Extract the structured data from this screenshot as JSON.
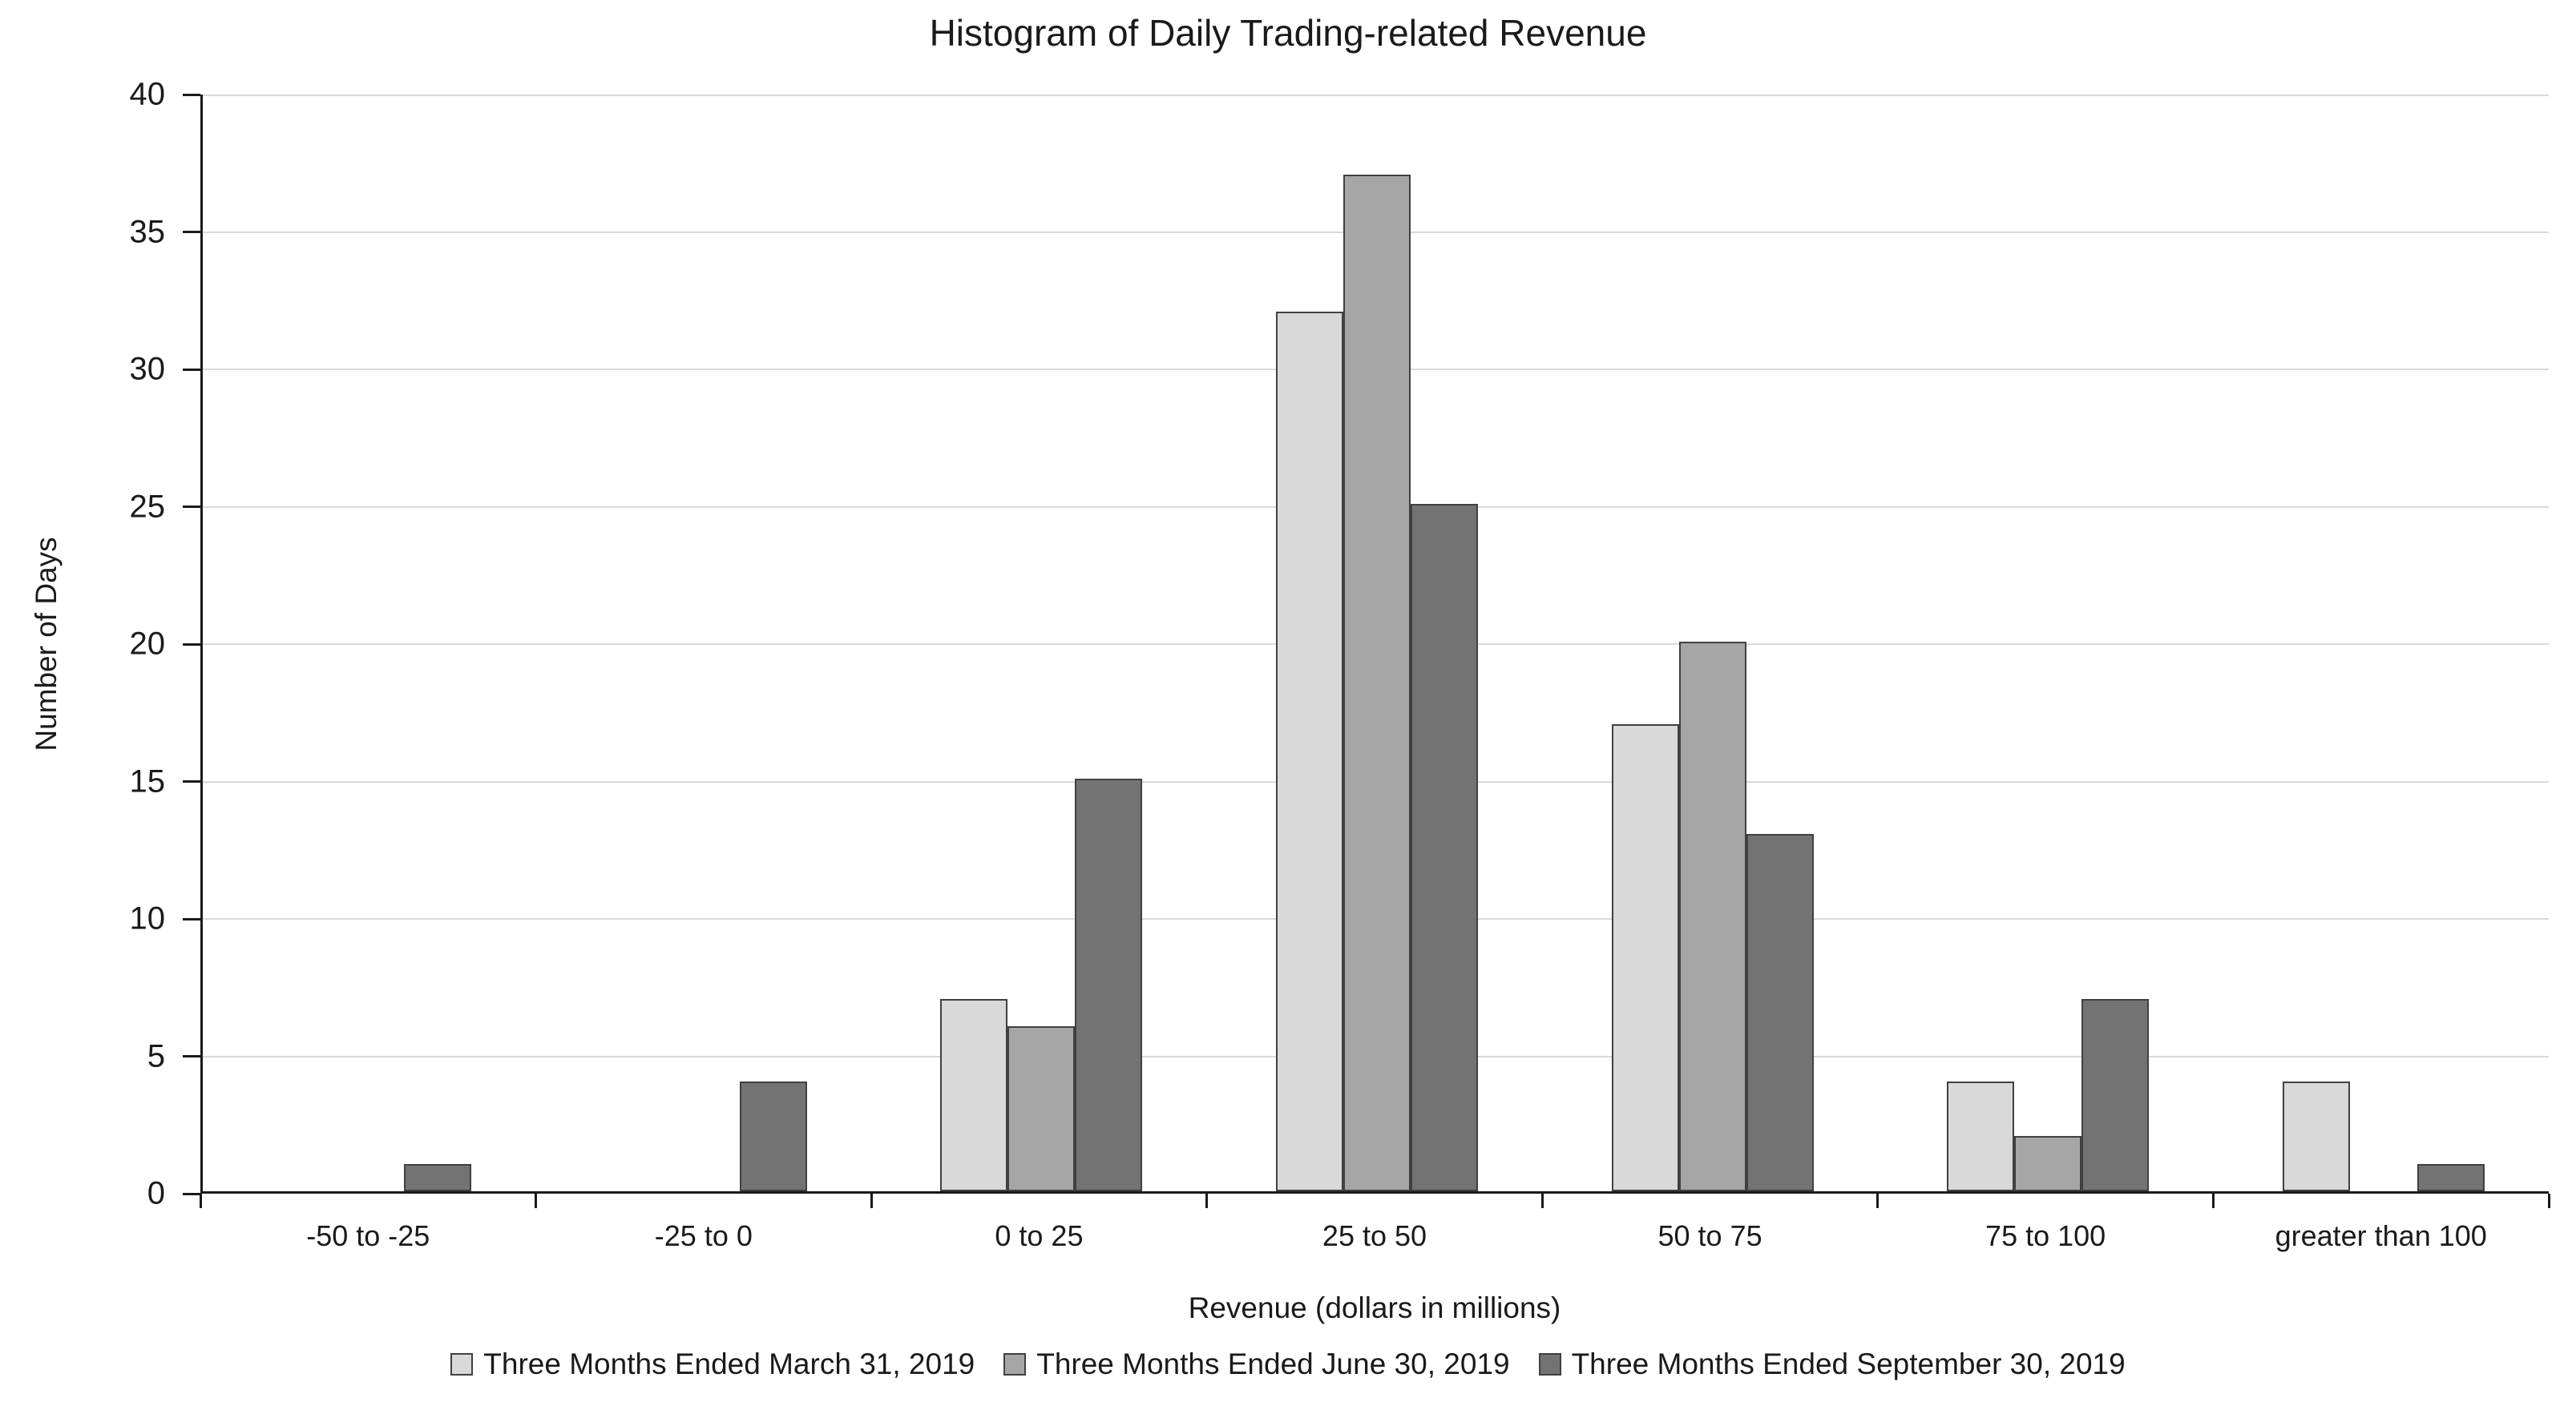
{
  "chart_data": {
    "type": "bar",
    "title": "Histogram of Daily Trading-related Revenue",
    "xlabel": "Revenue (dollars in millions)",
    "ylabel": "Number of Days",
    "ylim": [
      0,
      40
    ],
    "yticks": [
      0,
      5,
      10,
      15,
      20,
      25,
      30,
      35,
      40
    ],
    "grid": true,
    "legend_position": "bottom",
    "background_color": "#ffffff",
    "gridline_color": "#d9d9d9",
    "axis_color": "#1a1a1a",
    "bar_border_color": "#404040",
    "categories": [
      "-50 to -25",
      "-25 to 0",
      "0 to 25",
      "25 to 50",
      "50 to 75",
      "75 to 100",
      "greater than 100"
    ],
    "series": [
      {
        "name": "Three Months Ended March 31, 2019",
        "color": "#d9d9d9",
        "values": [
          0,
          0,
          7,
          32,
          17,
          4,
          4
        ]
      },
      {
        "name": "Three Months Ended June 30, 2019",
        "color": "#a6a6a6",
        "values": [
          0,
          0,
          6,
          37,
          20,
          2,
          0
        ]
      },
      {
        "name": "Three Months Ended September 30, 2019",
        "color": "#737373",
        "values": [
          1,
          4,
          15,
          25,
          13,
          7,
          1
        ]
      }
    ]
  }
}
